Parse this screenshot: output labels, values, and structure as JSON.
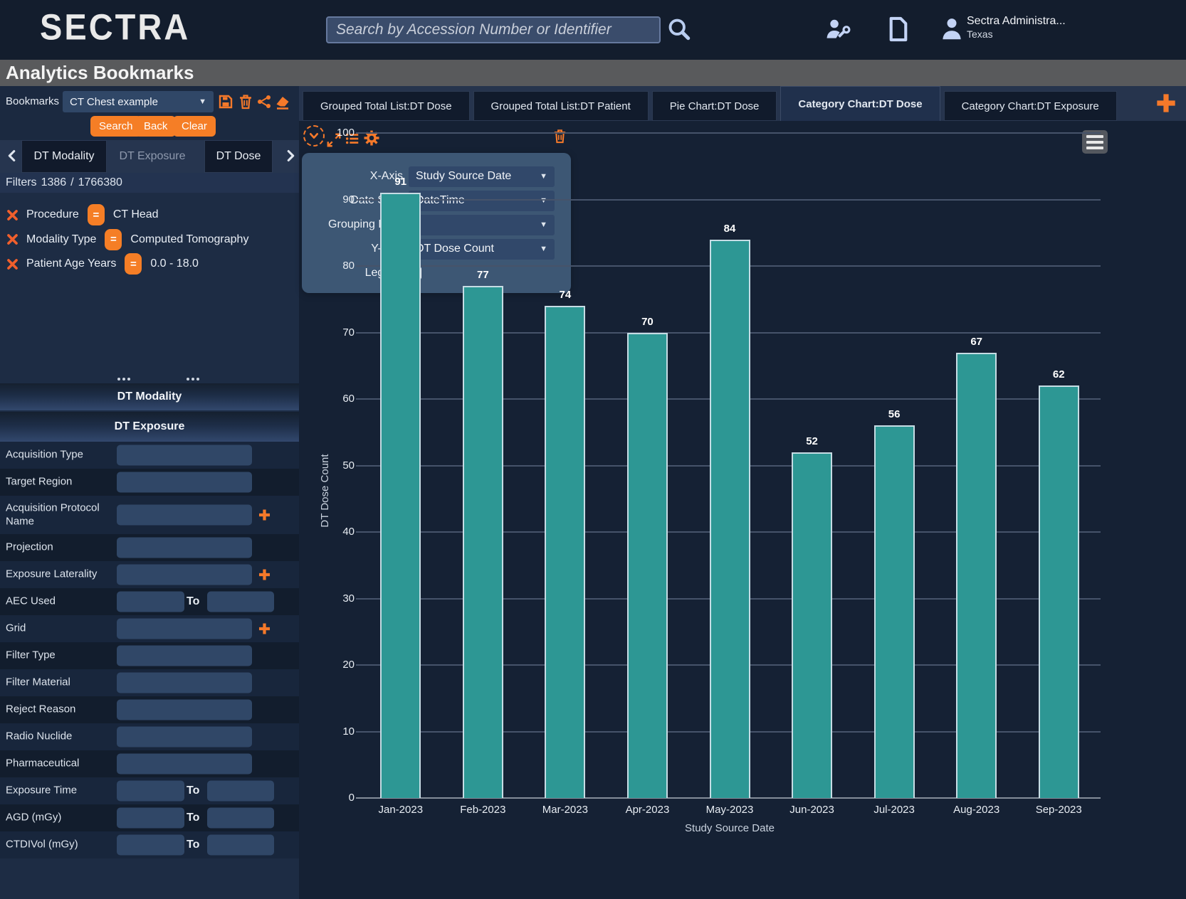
{
  "header": {
    "logo": "SECTRA",
    "search_placeholder": "Search by Accession Number or Identifier",
    "user_name": "Sectra Administra...",
    "user_location": "Texas"
  },
  "title_bar": {
    "title": "Analytics Bookmarks"
  },
  "bookmarks": {
    "label": "Bookmarks",
    "selected": "CT Chest example",
    "buttons": [
      "Search",
      "Back",
      "Clear"
    ]
  },
  "sidebar": {
    "tabs": [
      {
        "label": "DT Modality",
        "state": "normal"
      },
      {
        "label": "DT Exposure",
        "state": "dimmed"
      },
      {
        "label": "DT Dose",
        "state": "normal"
      }
    ],
    "filters_label": "Filters",
    "filters_count": "1386",
    "filters_sep": "/",
    "filters_total": "1766380",
    "filter_chips": [
      {
        "field": "Procedure",
        "op": "=",
        "value": "CT Head"
      },
      {
        "field": "Modality Type",
        "op": "=",
        "value": "Computed Tomography"
      },
      {
        "field": "Patient Age Years",
        "op": "=",
        "value": "0.0 - 18.0"
      }
    ],
    "sections": [
      {
        "title": "DT Modality"
      },
      {
        "title": "DT Exposure"
      }
    ],
    "fields": [
      {
        "label": "Acquisition Type",
        "type": "single"
      },
      {
        "label": "Target Region",
        "type": "single"
      },
      {
        "label": "Acquisition Protocol Name",
        "type": "single",
        "plus": true
      },
      {
        "label": "Projection",
        "type": "single"
      },
      {
        "label": "Exposure Laterality",
        "type": "single",
        "plus": true
      },
      {
        "label": "AEC Used",
        "type": "range",
        "to_label": "To"
      },
      {
        "label": "Grid",
        "type": "single",
        "plus": true
      },
      {
        "label": "Filter Type",
        "type": "single"
      },
      {
        "label": "Filter Material",
        "type": "single"
      },
      {
        "label": "Reject Reason",
        "type": "single"
      },
      {
        "label": "Radio Nuclide",
        "type": "single"
      },
      {
        "label": "Pharmaceutical",
        "type": "single"
      },
      {
        "label": "Exposure Time",
        "type": "range",
        "to_label": "To"
      },
      {
        "label": "AGD (mGy)",
        "type": "range",
        "to_label": "To"
      },
      {
        "label": "CTDIVol (mGy)",
        "type": "range",
        "to_label": "To"
      }
    ]
  },
  "workspace": {
    "tabs": [
      {
        "label": "Grouped Total List:DT Dose",
        "active": false
      },
      {
        "label": "Grouped Total List:DT Patient",
        "active": false
      },
      {
        "label": "Pie Chart:DT Dose",
        "active": false
      },
      {
        "label": "Category Chart:DT Dose",
        "active": true
      },
      {
        "label": "Category Chart:DT Exposure",
        "active": false
      }
    ]
  },
  "settings_popup": {
    "rows": [
      {
        "label": "X-Axis",
        "control": "select",
        "value": "Study Source Date"
      },
      {
        "label": "Date Style",
        "control": "select",
        "value": "DateTime"
      },
      {
        "label": "Grouping Field",
        "control": "select",
        "value": ""
      },
      {
        "label": "Y-Axis",
        "control": "select",
        "value": "DT Dose Count"
      },
      {
        "label": "Legend",
        "control": "checkbox",
        "checked": false
      }
    ]
  },
  "chart_data": {
    "type": "bar",
    "categories": [
      "Jan-2023",
      "Feb-2023",
      "Mar-2023",
      "Apr-2023",
      "May-2023",
      "Jun-2023",
      "Jul-2023",
      "Aug-2023",
      "Sep-2023"
    ],
    "values": [
      91,
      77,
      74,
      70,
      84,
      52,
      56,
      67,
      62
    ],
    "title": "",
    "xlabel": "Study Source Date",
    "ylabel": "DT Dose Count",
    "ylim": [
      0,
      100
    ],
    "ytick_step": 10,
    "grid": true,
    "legend": false,
    "bar_color": "#2d9794"
  },
  "colors": {
    "accent_orange": "#f57e26",
    "bar_teal": "#2d9794",
    "header_bg": "#131d2d",
    "chart_bg": "#152134",
    "sidebar_bg": "#1b2940"
  }
}
